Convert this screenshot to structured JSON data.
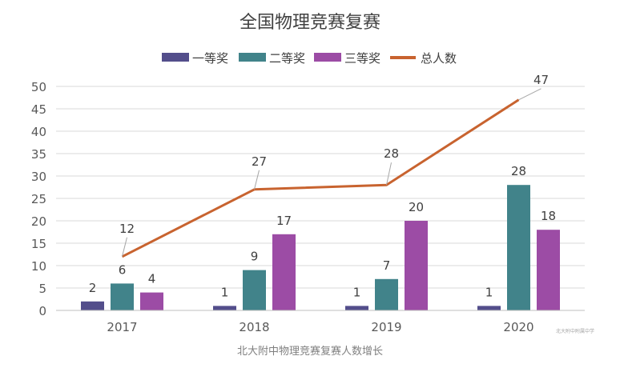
{
  "chart_data": {
    "type": "bar",
    "title": "全国物理竞赛复赛",
    "categories": [
      "2017",
      "2018",
      "2019",
      "2020"
    ],
    "ylim": [
      0,
      50
    ],
    "yticks": [
      0,
      5,
      10,
      15,
      20,
      25,
      30,
      35,
      40,
      45,
      50
    ],
    "grid": true,
    "legend_position": "top",
    "series": [
      {
        "name": "一等奖",
        "kind": "bar",
        "color": "#534e8b",
        "values": [
          2,
          1,
          1,
          1
        ]
      },
      {
        "name": "二等奖",
        "kind": "bar",
        "color": "#41838a",
        "values": [
          6,
          9,
          7,
          28
        ]
      },
      {
        "name": "三等奖",
        "kind": "bar",
        "color": "#9c4ca5",
        "values": [
          4,
          17,
          20,
          18
        ]
      },
      {
        "name": "总人数",
        "kind": "line",
        "color": "#c8632f",
        "values": [
          12,
          27,
          28,
          47
        ]
      }
    ]
  },
  "caption": "北大附中物理竞赛复赛人数增长",
  "watermark": "北大附中附属中学"
}
